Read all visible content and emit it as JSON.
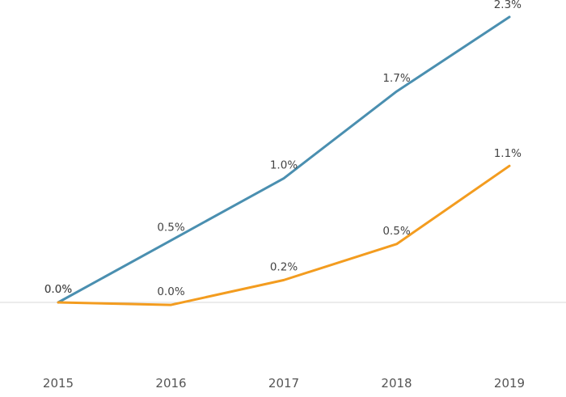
{
  "chart_data": {
    "type": "line",
    "title": "",
    "xlabel": "",
    "ylabel": "",
    "categories": [
      "2015",
      "2016",
      "2017",
      "2018",
      "2019"
    ],
    "ylim": [
      -0.6,
      2.4
    ],
    "grid": false,
    "legend": "none",
    "zero_line": true,
    "series": [
      {
        "color": "#4A8FB0",
        "values": [
          0.0,
          0.5,
          1.0,
          1.7,
          2.3
        ],
        "labels": [
          "0.0%",
          "0.5%",
          "1.0%",
          "1.7%",
          "2.3%"
        ]
      },
      {
        "color": "#F39C1F",
        "values": [
          0.0,
          -0.02,
          0.18,
          0.47,
          1.1
        ],
        "labels": [
          "0.0%",
          "0.0%",
          "0.2%",
          "0.5%",
          "1.1%"
        ]
      }
    ]
  }
}
